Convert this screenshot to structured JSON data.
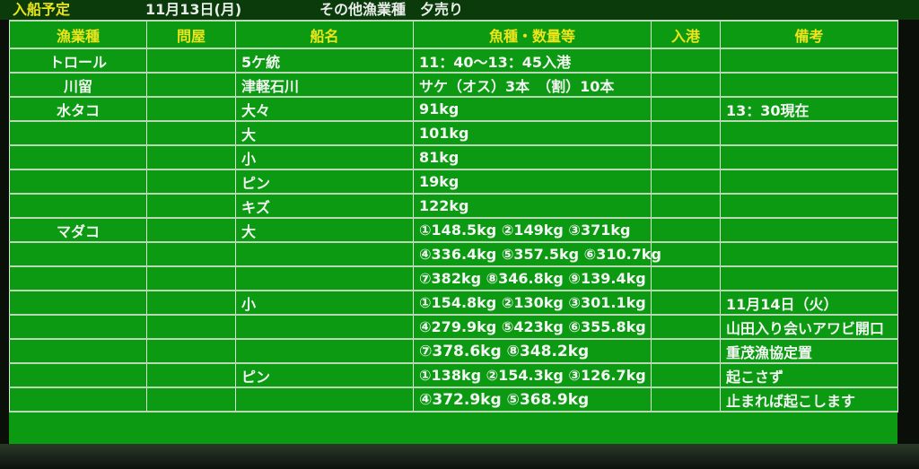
{
  "title": {
    "label": "入船予定",
    "date": "11月13日(月)",
    "category": "その他漁業種　夕売り"
  },
  "colors": {
    "board": "#0b9a12",
    "header_text": "#eee41a",
    "cell_text": "#f4f6f4"
  },
  "columns": [
    "漁業種",
    "問屋",
    "船名",
    "魚種・数量等",
    "入港",
    "備考"
  ],
  "rows": [
    [
      "トロール",
      "",
      "5ケ統",
      "11：40～13：45入港",
      "",
      ""
    ],
    [
      "川留",
      "",
      "津軽石川",
      "サケ（オス）3本　（割）10本",
      "",
      ""
    ],
    [
      "水タコ",
      "",
      "大々",
      "91kg",
      "",
      "13：30現在"
    ],
    [
      "",
      "",
      "大",
      "101kg",
      "",
      ""
    ],
    [
      "",
      "",
      "小",
      "81kg",
      "",
      ""
    ],
    [
      "",
      "",
      "ピン",
      "19kg",
      "",
      ""
    ],
    [
      "",
      "",
      "キズ",
      "122kg",
      "",
      ""
    ],
    [
      "マダコ",
      "",
      "大",
      "①148.5kg ②149kg ③371kg",
      "",
      ""
    ],
    [
      "",
      "",
      "",
      "④336.4kg ⑤357.5kg ⑥310.7kg",
      "",
      ""
    ],
    [
      "",
      "",
      "",
      "⑦382kg ⑧346.8kg ⑨139.4kg",
      "",
      ""
    ],
    [
      "",
      "",
      "小",
      "①154.8kg ②130kg ③301.1kg",
      "",
      "11月14日（火）"
    ],
    [
      "",
      "",
      "",
      "④279.9kg ⑤423kg ⑥355.8kg",
      "",
      "山田入り会いアワビ開口"
    ],
    [
      "",
      "",
      "",
      "⑦378.6kg ⑧348.2kg",
      "",
      "重茂漁協定置"
    ],
    [
      "",
      "",
      "ピン",
      "①138kg ②154.3kg ③126.7kg",
      "",
      "起こさず"
    ],
    [
      "",
      "",
      "",
      "④372.9kg ⑤368.9kg",
      "",
      "止まれば起こします"
    ]
  ]
}
